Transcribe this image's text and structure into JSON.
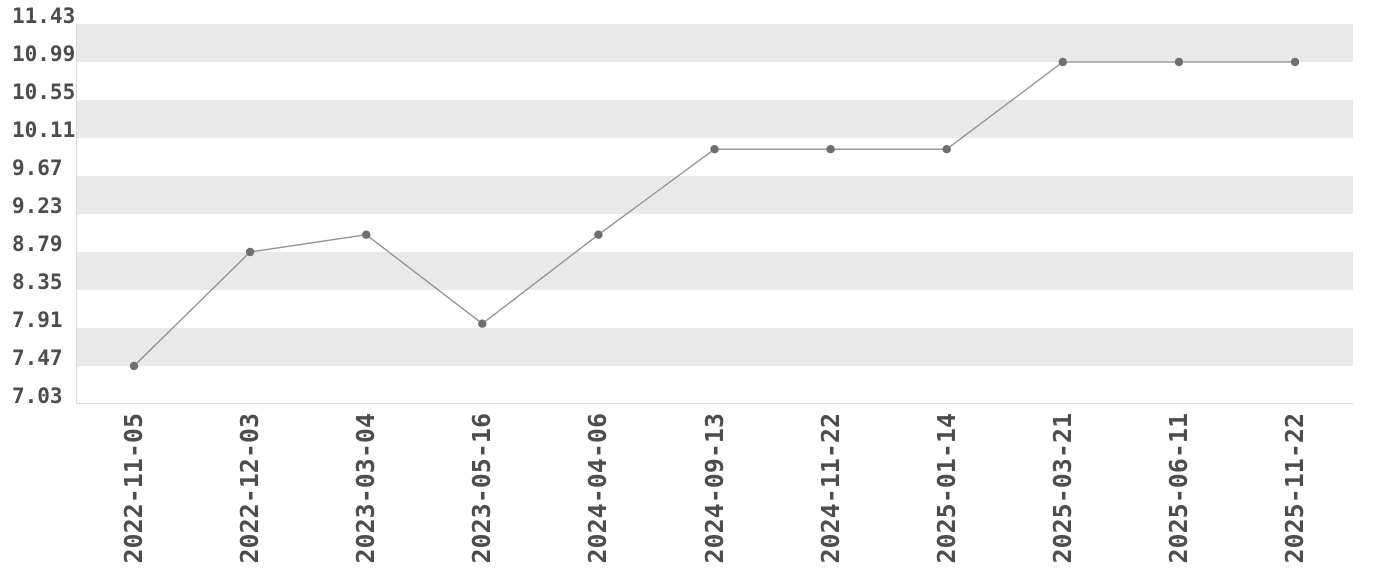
{
  "chart_data": {
    "type": "line",
    "title": "",
    "xlabel": "",
    "ylabel": "",
    "categories": [
      "2022-11-05",
      "2022-12-03",
      "2023-03-04",
      "2023-05-16",
      "2024-04-06",
      "2024-09-13",
      "2024-11-22",
      "2025-01-14",
      "2025-03-21",
      "2025-06-11",
      "2025-11-22"
    ],
    "values": [
      7.47,
      8.79,
      8.99,
      7.96,
      8.99,
      9.98,
      9.98,
      9.98,
      10.99,
      10.99,
      10.99
    ],
    "y_tick_labels": [
      "11.43",
      "10.99",
      "10.55",
      "10.11",
      "9.67",
      "9.23",
      "8.79",
      "8.35",
      "7.91",
      "7.47",
      "7.03"
    ],
    "ylim": [
      7.03,
      11.43
    ],
    "y_tick_step": 0.44,
    "legend": "none",
    "grid": "alternating-horizontal-bands",
    "x_label_rotation": -90,
    "marker": "circle",
    "colors": {
      "background": "#ffffff",
      "band": "#e9e9e9",
      "axis_line": "#d9d9d9",
      "line": "#8f8f8f",
      "marker": "#6f6f6f",
      "label_text": "#4d4d4d"
    }
  }
}
